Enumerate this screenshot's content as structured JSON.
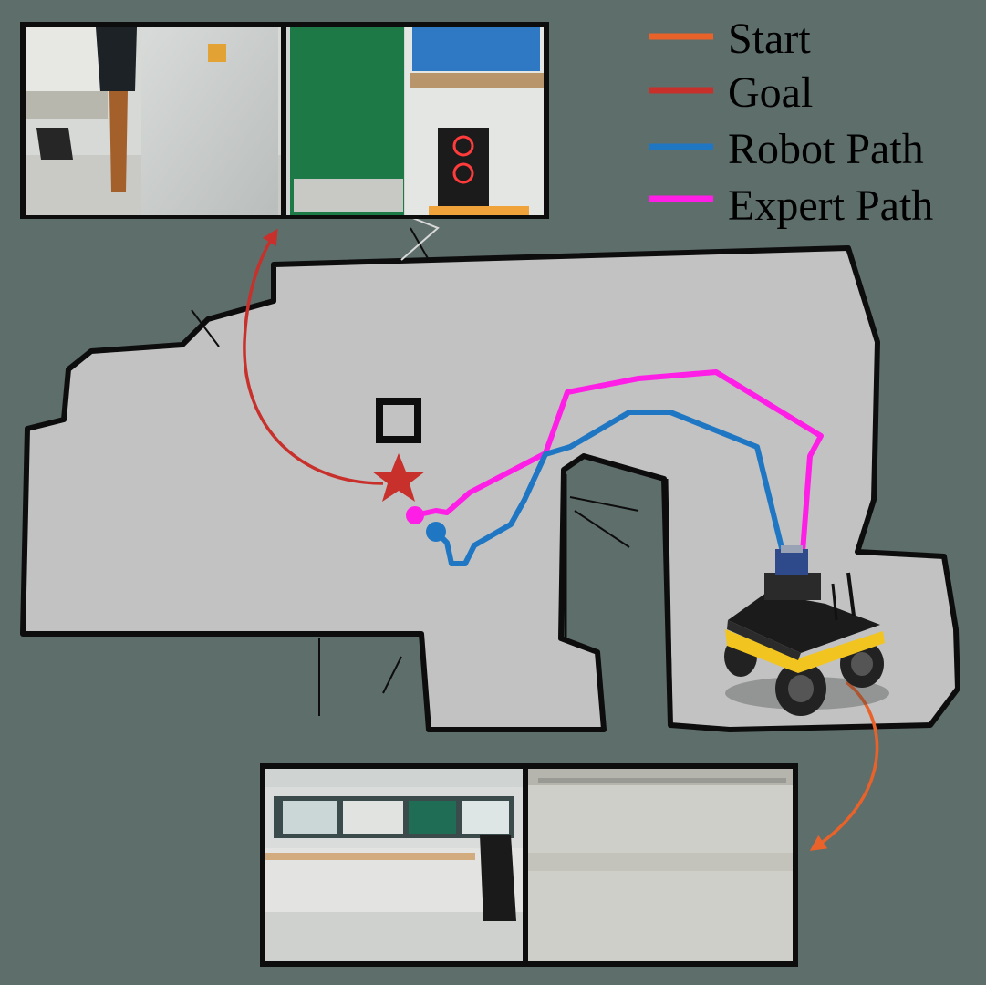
{
  "legend": {
    "items": [
      {
        "label": "Start",
        "color": "#e8622a"
      },
      {
        "label": "Goal",
        "color": "#c8302c"
      },
      {
        "label": "Robot Path",
        "color": "#1f77c4"
      },
      {
        "label": "Expert Path",
        "color": "#ff1ee6"
      }
    ]
  },
  "colors": {
    "background": "#5e6e6b",
    "map_floor": "#c2c2c2",
    "map_wall": "#0d0d0d",
    "start_arrow": "#e8622a",
    "goal_arrow": "#c8302c",
    "robot_path": "#1f77c4",
    "expert_path": "#ff1ee6"
  },
  "icons": {
    "goal_marker": "star-icon",
    "robot": "ugv-robot-icon"
  },
  "photos": {
    "goal_views": [
      "goal-view-office-pillar",
      "goal-view-green-door"
    ],
    "start_views": [
      "start-view-corridor-window",
      "start-view-white-wall"
    ]
  }
}
